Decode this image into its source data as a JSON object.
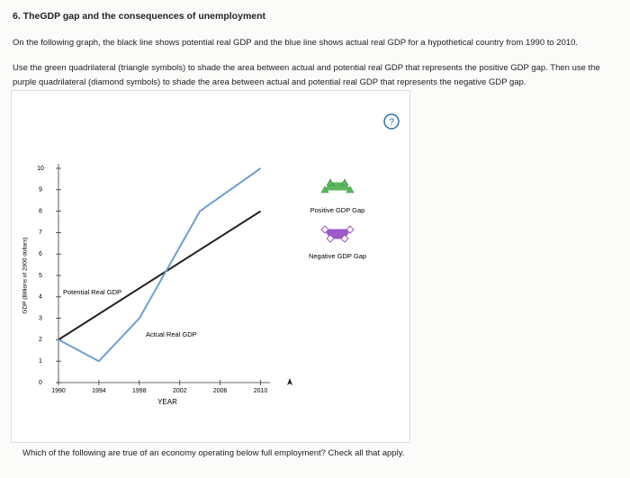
{
  "header": {
    "title": "6. TheGDP gap and the consequences of unemployment"
  },
  "instructions": [
    "On the following graph, the black line shows potential real GDP and the blue line shows actual real GDP for a hypothetical country from 1990 to 2010.",
    "Use the green quadrilateral (triangle symbols) to shade the area between actual and potential real GDP that represents the positive GDP gap. Then use the purple quadrilateral (diamond symbols) to shade the area between actual and potential real GDP that represents the negative GDP gap."
  ],
  "help": "?",
  "chart_data": {
    "type": "line",
    "x_label": "YEAR",
    "y_label": "GDP (Billions of 2000 dollars)",
    "xlim": [
      1990,
      2012
    ],
    "xticks": [
      1990,
      1994,
      1998,
      2002,
      2006,
      2010
    ],
    "ylim": [
      0,
      10
    ],
    "yticks": [
      0,
      1,
      2,
      3,
      4,
      5,
      6,
      7,
      8,
      9,
      10
    ],
    "series": [
      {
        "name": "Potential Real GDP",
        "color": "#222222",
        "x": [
          1990,
          2010
        ],
        "values": [
          2,
          8
        ]
      },
      {
        "name": "Actual Real GDP",
        "color": "#6f9fd2",
        "x": [
          1990,
          1994,
          1998,
          2004,
          2010
        ],
        "values": [
          2,
          1,
          3,
          8,
          10
        ]
      }
    ],
    "tools": [
      {
        "label": "Positive GDP Gap",
        "color": "#5cb85c"
      },
      {
        "label": "Negative GDP Gap",
        "color": "#9b59c9"
      }
    ]
  },
  "question": "Which of the following are true of an economy operating below full employment? Check all that apply."
}
